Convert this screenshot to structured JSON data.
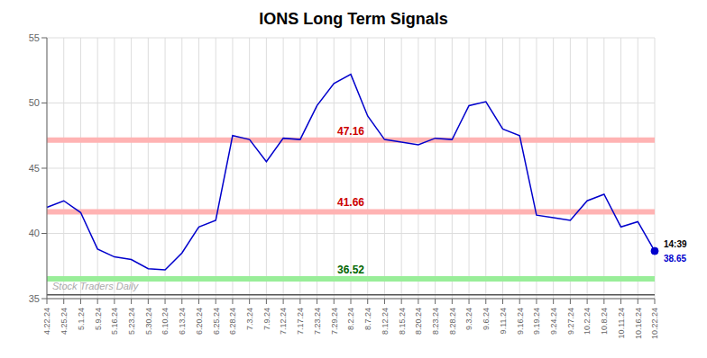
{
  "chart_data": {
    "type": "line",
    "title": "IONS Long Term Signals",
    "categories": [
      "4.22.24",
      "4.25.24",
      "5.1.24",
      "5.9.24",
      "5.16.24",
      "5.23.24",
      "5.30.24",
      "6.10.24",
      "6.13.24",
      "6.20.24",
      "6.25.24",
      "6.28.24",
      "7.3.24",
      "7.9.24",
      "7.12.24",
      "7.17.24",
      "7.23.24",
      "7.29.24",
      "8.2.24",
      "8.7.24",
      "8.12.24",
      "8.15.24",
      "8.20.24",
      "8.23.24",
      "8.28.24",
      "9.3.24",
      "9.6.24",
      "9.11.24",
      "9.16.24",
      "9.19.24",
      "9.24.24",
      "9.27.24",
      "10.2.24",
      "10.8.24",
      "10.11.24",
      "10.16.24",
      "10.22.24"
    ],
    "values": [
      42.0,
      42.5,
      41.6,
      38.8,
      38.2,
      38.0,
      37.3,
      37.2,
      38.5,
      40.5,
      41.0,
      47.5,
      47.2,
      45.5,
      47.3,
      47.2,
      49.8,
      51.5,
      52.2,
      49.0,
      47.2,
      47.0,
      46.8,
      47.3,
      47.2,
      49.8,
      50.1,
      48.0,
      47.5,
      41.4,
      41.2,
      41.0,
      42.5,
      43.0,
      40.5,
      40.9,
      38.65
    ],
    "color": "#0000cc",
    "ylim": [
      35,
      55
    ],
    "yticks": [
      35,
      40,
      45,
      50,
      55
    ],
    "grid": true,
    "reference_lines": [
      {
        "value": 47.16,
        "label": "47.16",
        "color": "#ffb3b3",
        "label_color": "#cc0000"
      },
      {
        "value": 41.66,
        "label": "41.66",
        "color": "#ffb3b3",
        "label_color": "#cc0000"
      },
      {
        "value": 36.52,
        "label": "36.52",
        "color": "#99ee99",
        "label_color": "#006600"
      }
    ],
    "bottom_line": {
      "value": 35.3,
      "color": "#555555",
      "annotation": "Stock Traders Daily",
      "annotation_color": "#aaaaaa"
    },
    "last_point": {
      "value": 38.65,
      "label": "14:39",
      "color": "#0000cc"
    }
  }
}
